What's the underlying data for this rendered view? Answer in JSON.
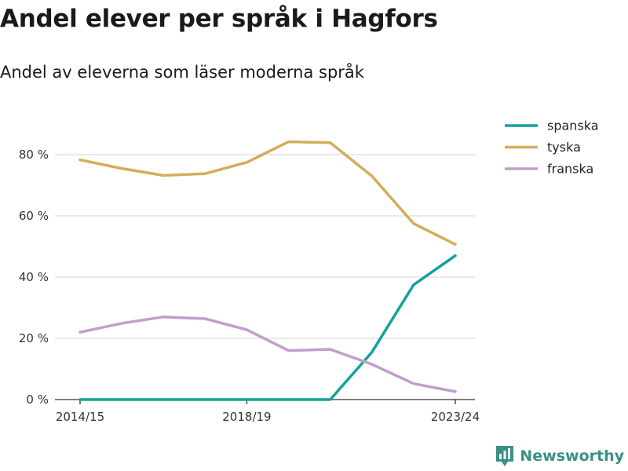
{
  "header": {
    "title": "Andel elever per språk i Hagfors",
    "subtitle": "Andel av eleverna som läser moderna språk"
  },
  "brand": {
    "name": "Newsworthy",
    "color": "#3a8f86",
    "icon": "bar-chart-pin-icon"
  },
  "chart_data": {
    "type": "line",
    "x": [
      "2014/15",
      "2015/16",
      "2016/17",
      "2017/18",
      "2018/19",
      "2019/20",
      "2020/21",
      "2021/22",
      "2022/23",
      "2023/24"
    ],
    "x_tick_labels": [
      "2014/15",
      "2018/19",
      "2023/24"
    ],
    "series": [
      {
        "name": "spanska",
        "color": "#12a39a",
        "values": [
          0,
          0,
          0,
          0,
          0,
          0,
          0,
          15.5,
          37.5,
          47
        ]
      },
      {
        "name": "tyska",
        "color": "#d4ad5a",
        "values": [
          78.3,
          75.5,
          73.2,
          73.8,
          77.5,
          84.2,
          83.9,
          73,
          57.5,
          50.7
        ]
      },
      {
        "name": "franska",
        "color": "#c39dcd",
        "values": [
          22,
          24.9,
          27,
          26.4,
          22.8,
          16,
          16.4,
          11.5,
          5.2,
          2.6
        ]
      }
    ],
    "y_ticks": [
      0,
      20,
      40,
      60,
      80
    ],
    "y_unit": " %",
    "ylim": [
      0,
      92
    ],
    "grid": true,
    "legend_position": "top-right"
  }
}
